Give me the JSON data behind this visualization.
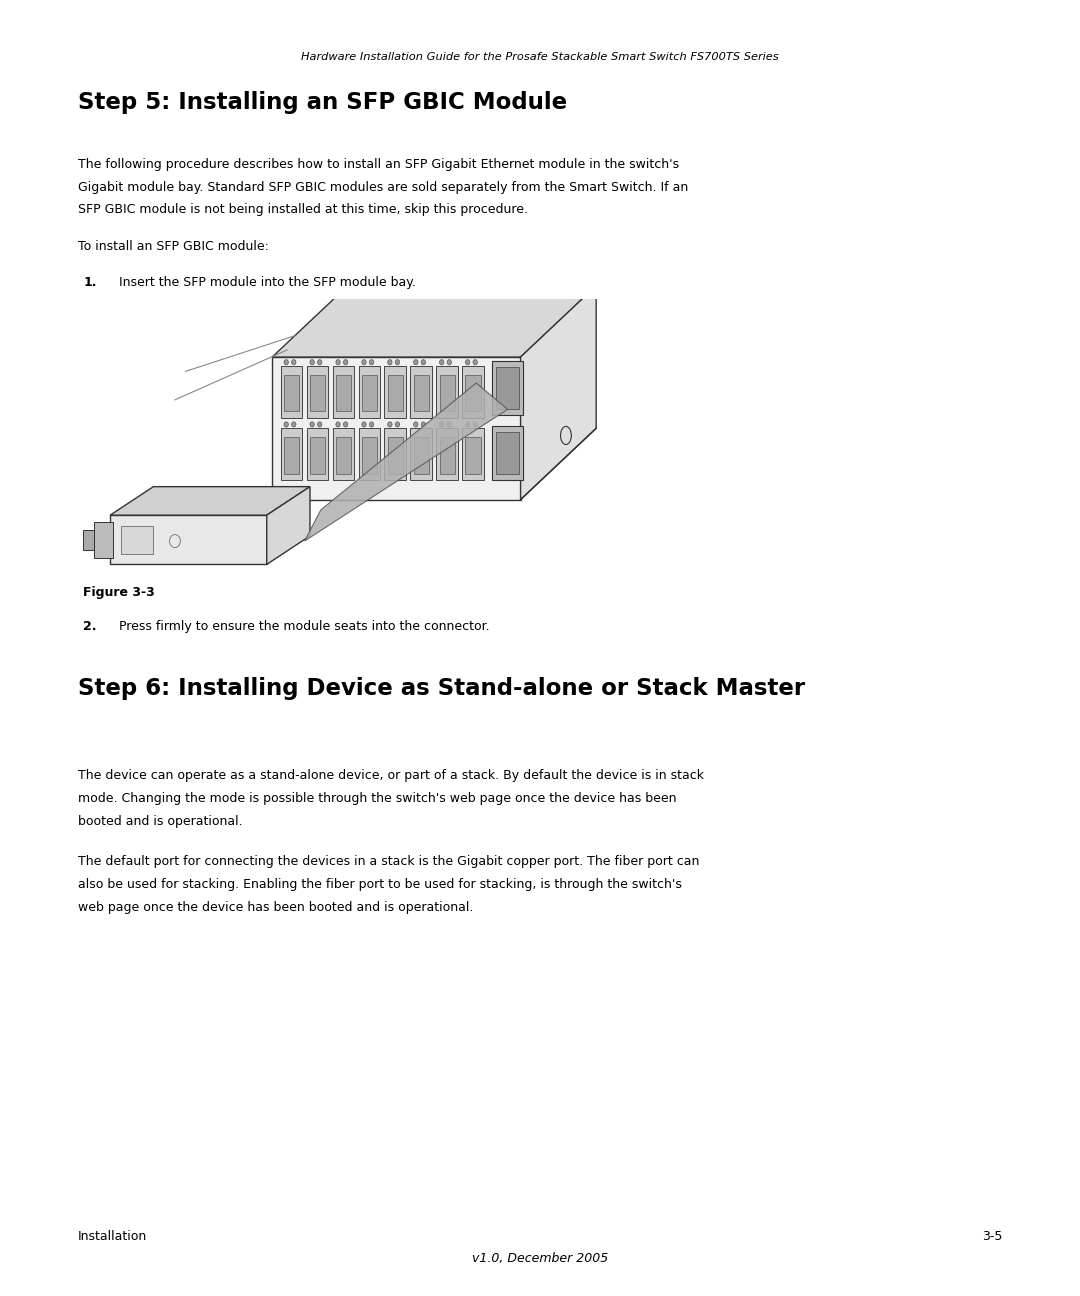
{
  "bg_color": "#ffffff",
  "text_color": "#000000",
  "header_text": "Hardware Installation Guide for the Prosafe Stackable Smart Switch FS700TS Series",
  "step5_title": "Step 5: Installing an SFP GBIC Module",
  "step5_body1_line1": "The following procedure describes how to install an SFP Gigabit Ethernet module in the switch's",
  "step5_body1_line2": "Gigabit module bay. Standard SFP GBIC modules are sold separately from the Smart Switch. If an",
  "step5_body1_line3": "SFP GBIC module is not being installed at this time, skip this procedure.",
  "step5_body2": "To install an SFP GBIC module:",
  "step5_item1_num": "1.",
  "step5_item1_text": "Insert the SFP module into the SFP module bay.",
  "figure_caption": "Figure 3-3",
  "step5_item2_num": "2.",
  "step5_item2_text": "Press firmly to ensure the module seats into the connector.",
  "step6_title": "Step 6: Installing Device as Stand-alone or Stack Master",
  "step6_body1_line1": "The device can operate as a stand-alone device, or part of a stack. By default the device is in stack",
  "step6_body1_line2": "mode. Changing the mode is possible through the switch's web page once the device has been",
  "step6_body1_line3": "booted and is operational.",
  "step6_body2_line1": "The default port for connecting the devices in a stack is the Gigabit copper port. The fiber port can",
  "step6_body2_line2": "also be used for stacking. Enabling the fiber port to be used for stacking, is through the switch's",
  "step6_body2_line3": "web page once the device has been booted and is operational.",
  "footer_left": "Installation",
  "footer_right": "3-5",
  "footer_center": "v1.0, December 2005"
}
